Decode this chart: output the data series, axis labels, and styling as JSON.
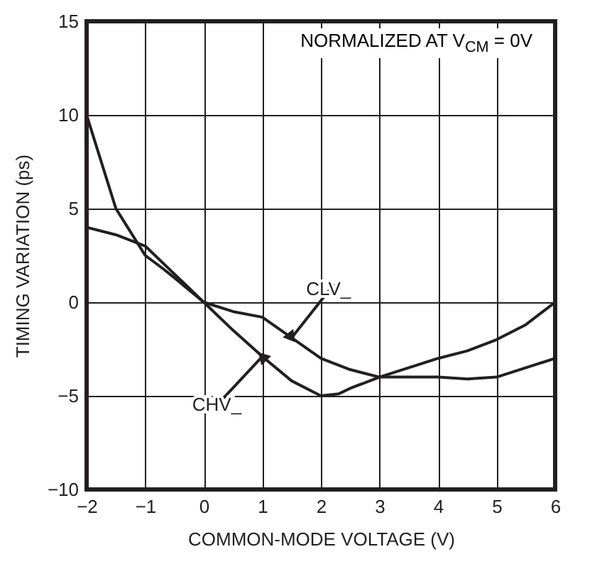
{
  "chart_data": {
    "type": "line",
    "xlabel": "COMMON-MODE VOLTAGE (V)",
    "ylabel": "TIMING VARIATION (ps)",
    "series": [
      {
        "name": "CLV_",
        "color": "#231f20",
        "x": [
          -2,
          -1.5,
          -1,
          -0.5,
          0,
          0.5,
          1,
          1.5,
          2,
          2.5,
          3,
          3.5,
          4,
          4.5,
          5,
          5.5,
          6
        ],
        "values": [
          4,
          3.6,
          3,
          1.5,
          0,
          -0.5,
          -0.8,
          -1.9,
          -3,
          -3.6,
          -4,
          -4,
          -4,
          -4.1,
          -4,
          -3.5,
          -3
        ]
      },
      {
        "name": "CHV_",
        "color": "#231f20",
        "x": [
          -2,
          -1.8,
          -1.5,
          -1.3,
          -1,
          -0.7,
          -0.5,
          0,
          0.5,
          1,
          1.5,
          2,
          2.3,
          2.5,
          3,
          3.5,
          4,
          4.5,
          5,
          5.5,
          6
        ],
        "values": [
          10,
          8,
          5,
          4,
          2.5,
          1.8,
          1.3,
          0,
          -1.5,
          -2.9,
          -4.2,
          -5,
          -4.9,
          -4.6,
          -4,
          -3.5,
          -3,
          -2.6,
          -2,
          -1.2,
          0
        ]
      }
    ],
    "xlim": [
      -2,
      6
    ],
    "xticks": [
      -2,
      -1,
      0,
      1,
      2,
      3,
      4,
      5,
      6
    ],
    "ylim": [
      -10,
      15
    ],
    "yticks": [
      -10,
      -5,
      0,
      5,
      10,
      15
    ],
    "grid": true,
    "line_style": "solid",
    "marker": "none",
    "annotations": [
      "NORMALIZED AT V$_{CM}$ = 0V"
    ]
  }
}
